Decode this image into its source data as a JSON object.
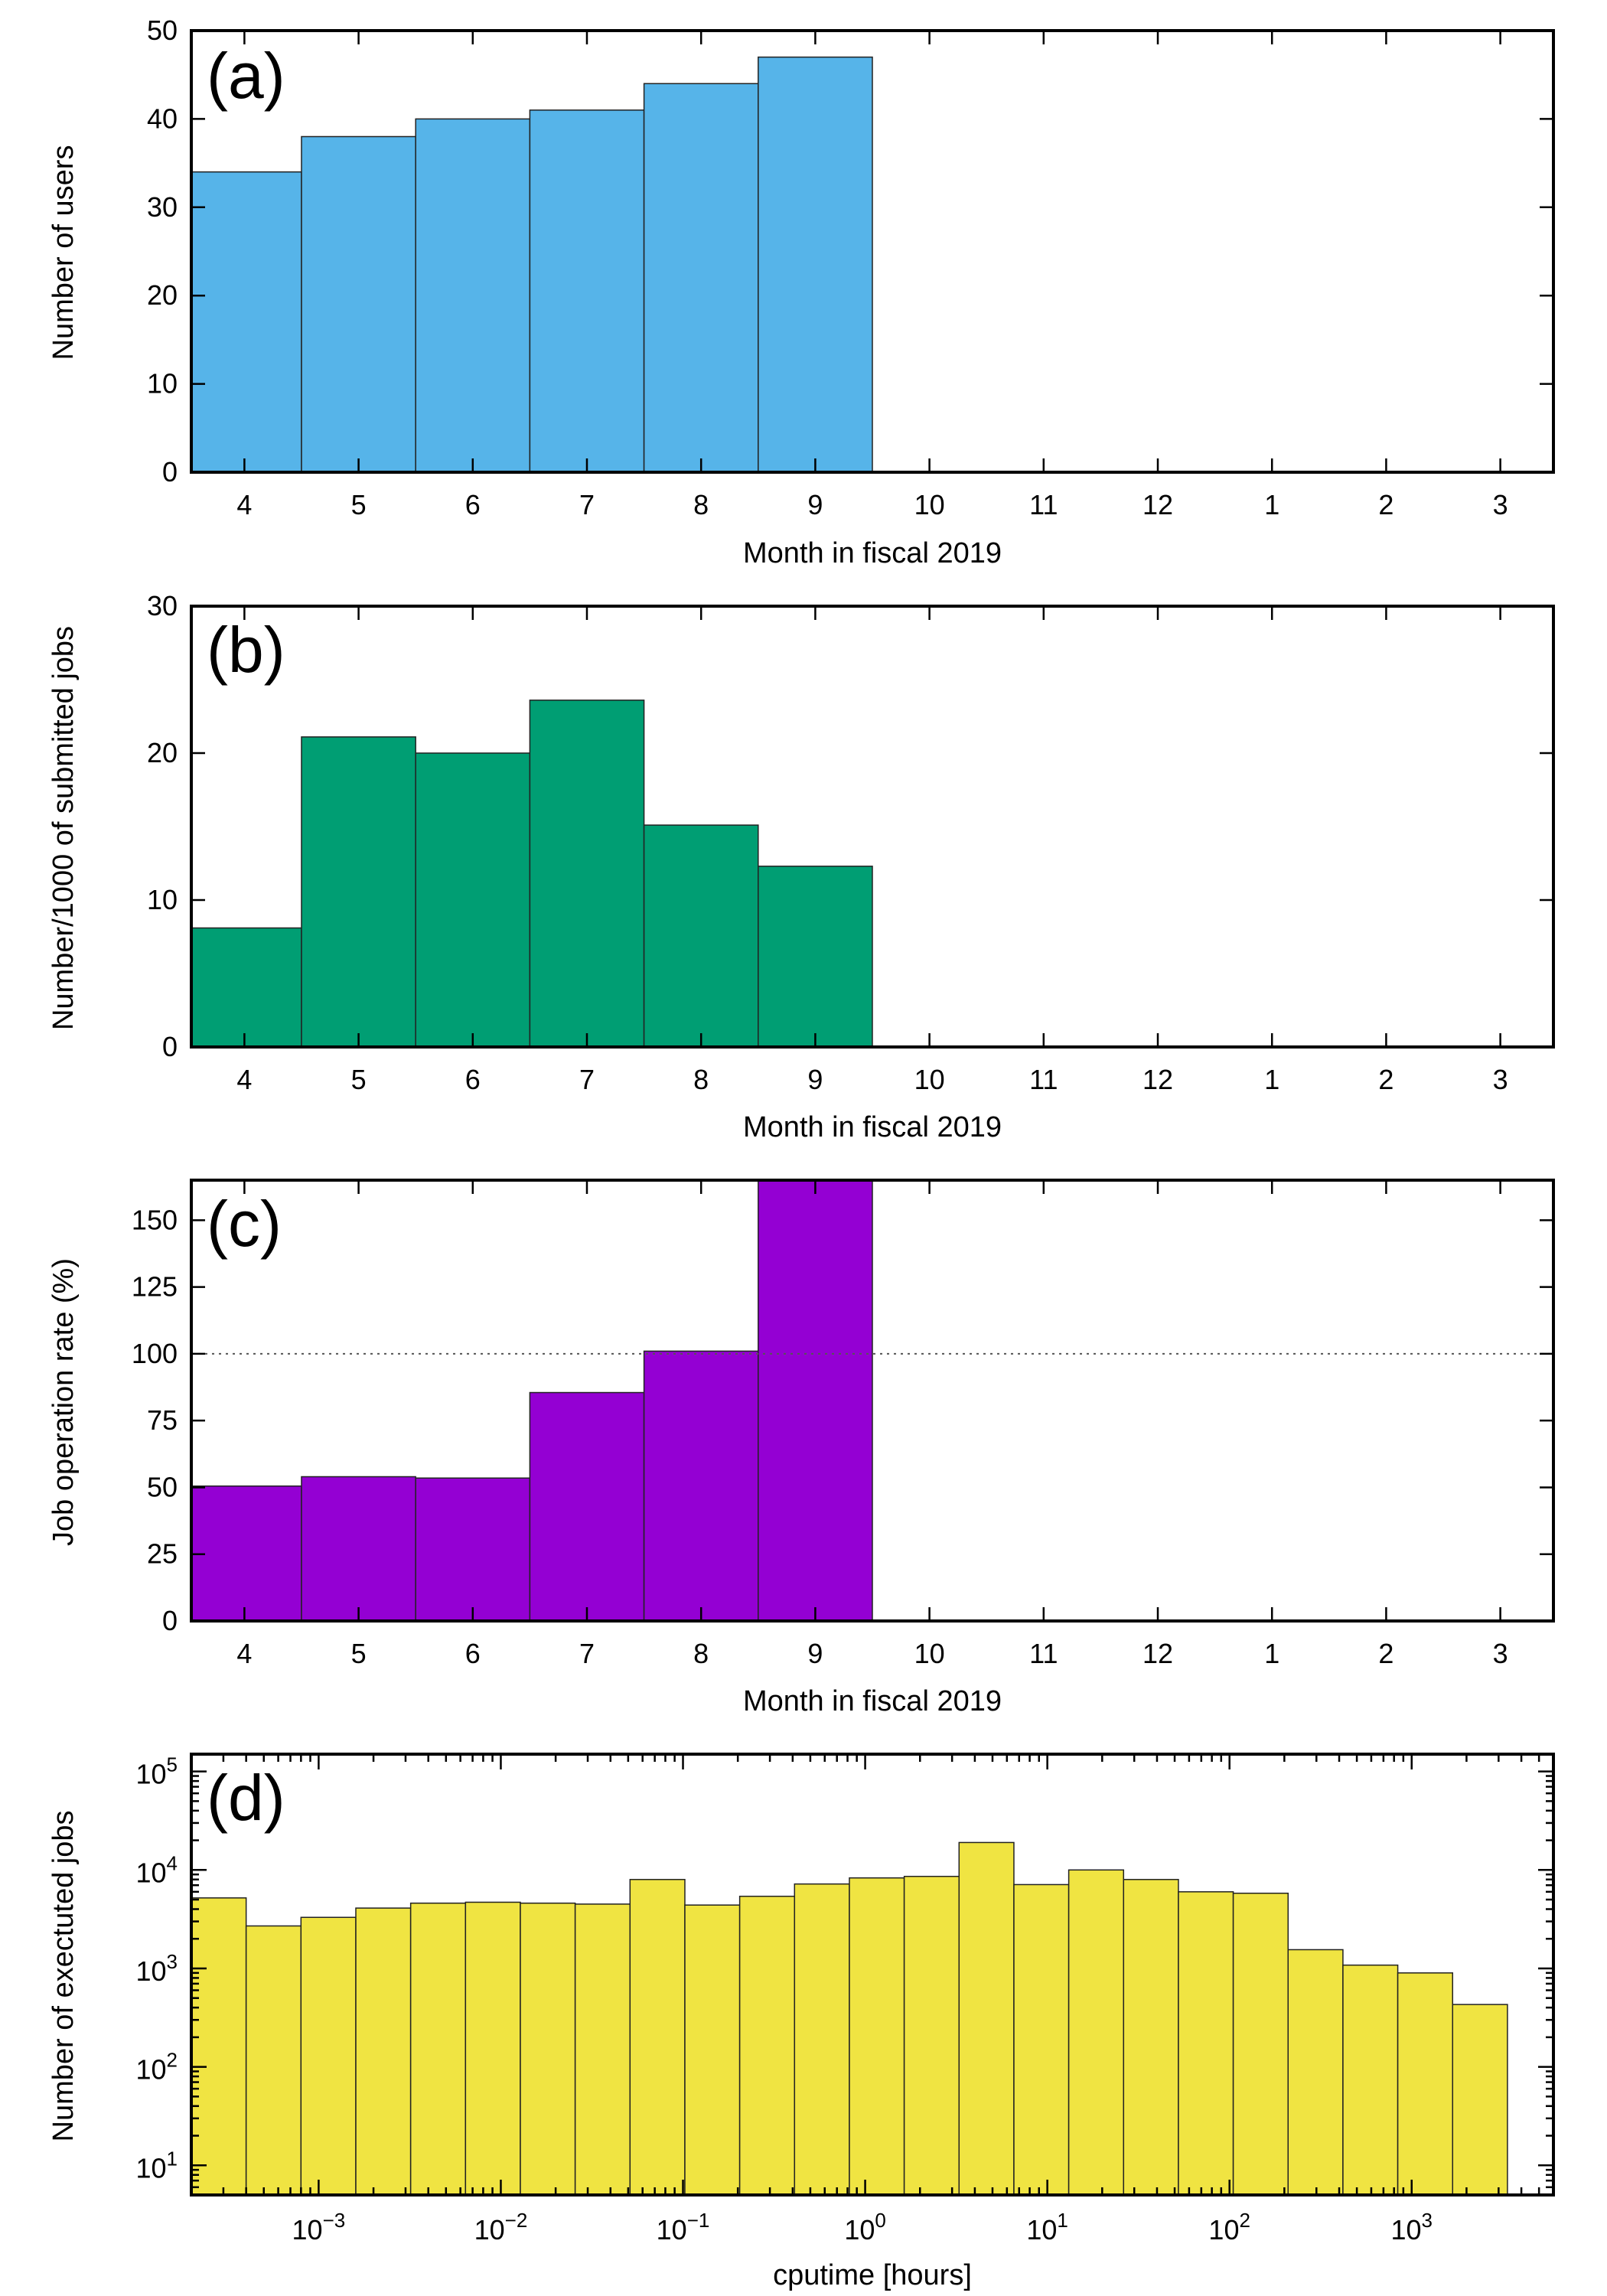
{
  "chart_data": [
    {
      "type": "bar",
      "panel_label": "(a)",
      "categories": [
        "4",
        "5",
        "6",
        "7",
        "8",
        "9",
        "10",
        "11",
        "12",
        "1",
        "2",
        "3"
      ],
      "values": [
        34,
        38,
        40,
        41,
        44,
        47,
        null,
        null,
        null,
        null,
        null,
        null
      ],
      "xlabel": "Month in fiscal 2019",
      "ylabel": "Number of users",
      "ylim": [
        0,
        50
      ],
      "yticks": [
        0,
        10,
        20,
        30,
        40,
        50
      ],
      "color": "#56b4e9"
    },
    {
      "type": "bar",
      "panel_label": "(b)",
      "categories": [
        "4",
        "5",
        "6",
        "7",
        "8",
        "9",
        "10",
        "11",
        "12",
        "1",
        "2",
        "3"
      ],
      "values": [
        8.1,
        21.1,
        20.0,
        23.6,
        15.1,
        12.3,
        null,
        null,
        null,
        null,
        null,
        null
      ],
      "xlabel": "Month in fiscal 2019",
      "ylabel": "Number/1000 of submitted jobs",
      "ylim": [
        0,
        30
      ],
      "yticks": [
        0,
        10,
        20,
        30
      ],
      "color": "#009e73"
    },
    {
      "type": "bar",
      "panel_label": "(c)",
      "categories": [
        "4",
        "5",
        "6",
        "7",
        "8",
        "9",
        "10",
        "11",
        "12",
        "1",
        "2",
        "3"
      ],
      "values": [
        50.5,
        54,
        53.5,
        85.5,
        101,
        165,
        null,
        null,
        null,
        null,
        null,
        null
      ],
      "xlabel": "Month in fiscal 2019",
      "ylabel": "Job operation rate (%)",
      "ylim": [
        0,
        165
      ],
      "yticks": [
        0,
        25,
        50,
        75,
        100,
        125,
        150
      ],
      "reference_line": 100,
      "color": "#9400d3"
    },
    {
      "type": "bar",
      "panel_label": "(d)",
      "xscale": "log",
      "yscale": "log",
      "bin_edges": [
        0.0002,
        0.0004,
        0.0008,
        0.0016,
        0.0032,
        0.0064,
        0.0128,
        0.0256,
        0.0512,
        0.1024,
        0.2048,
        0.4096,
        0.8192,
        1.6384,
        3.2768,
        6.5536,
        13.1072,
        26.2144,
        52.4288,
        104.8576,
        209.7152,
        419.4304,
        838.8608,
        1677.7216,
        3355.4432
      ],
      "values": [
        5200,
        2700,
        3300,
        4100,
        4600,
        4700,
        4600,
        4500,
        8000,
        4400,
        5400,
        7200,
        8300,
        8600,
        19000,
        7100,
        10000,
        8000,
        6000,
        5800,
        1550,
        1080,
        900,
        430
      ],
      "xlabel": "cputime [hours]",
      "ylabel": "Number of exectuted jobs",
      "xlim": [
        0.0002,
        6000
      ],
      "ylim": [
        5,
        150000
      ],
      "xticks": [
        {
          "base": "10",
          "exp": "−3",
          "value": 0.001
        },
        {
          "base": "10",
          "exp": "−2",
          "value": 0.01
        },
        {
          "base": "10",
          "exp": "−1",
          "value": 0.1
        },
        {
          "base": "10",
          "exp": "0",
          "value": 1
        },
        {
          "base": "10",
          "exp": "1",
          "value": 10
        },
        {
          "base": "10",
          "exp": "2",
          "value": 100
        },
        {
          "base": "10",
          "exp": "3",
          "value": 1000
        }
      ],
      "yticks": [
        {
          "base": "10",
          "exp": "1",
          "value": 10
        },
        {
          "base": "10",
          "exp": "2",
          "value": 100
        },
        {
          "base": "10",
          "exp": "3",
          "value": 1000
        },
        {
          "base": "10",
          "exp": "4",
          "value": 10000
        },
        {
          "base": "10",
          "exp": "5",
          "value": 100000
        }
      ],
      "color": "#f0e442"
    }
  ]
}
